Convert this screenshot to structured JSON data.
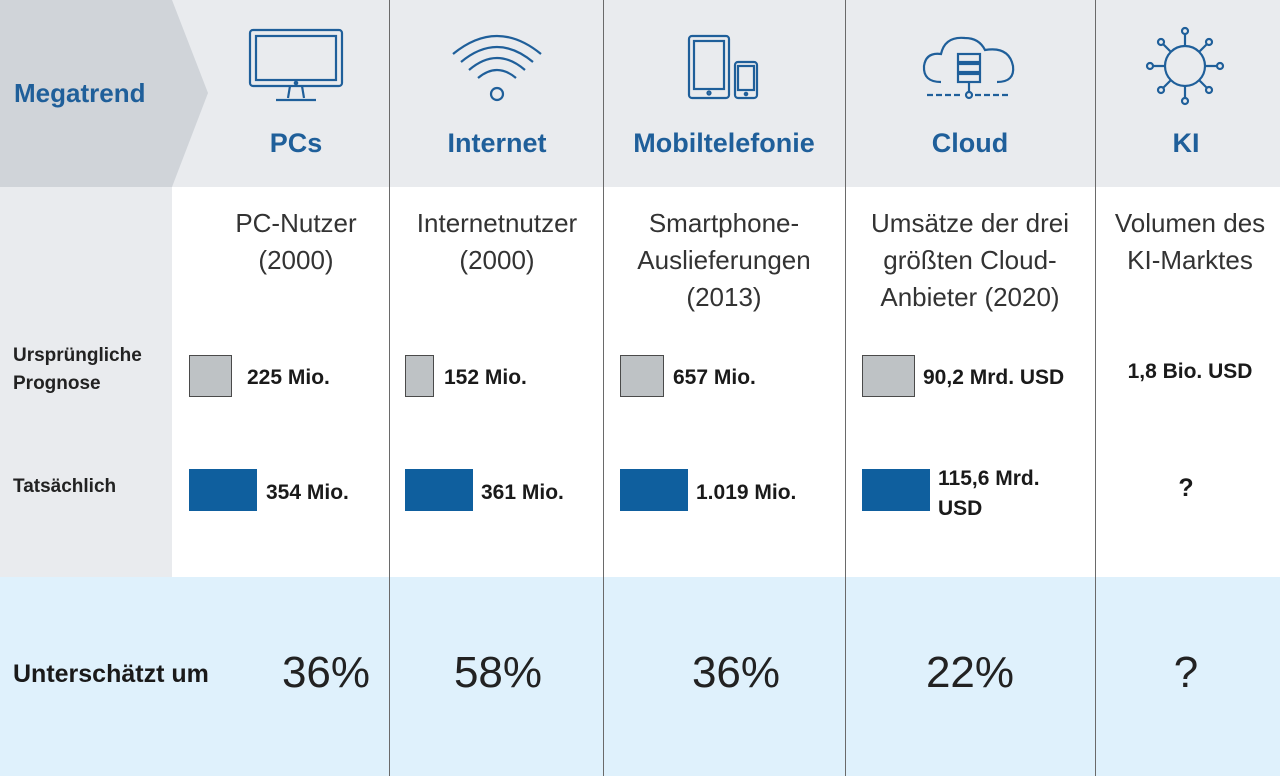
{
  "header_label": "Megatrend",
  "row_labels": {
    "original": "Ursprüngliche Prognose",
    "actual": "Tatsächlich",
    "underestimated": "Unterschätzt um"
  },
  "colors": {
    "accent": "#1f5f9a",
    "bar_actual": "#0f5f9e",
    "bar_original": "#bec2c5",
    "header_bg": "#e9ebee",
    "footer_bg": "#dff1fc"
  },
  "columns": [
    {
      "title": "PCs",
      "icon": "desktop-monitor-icon",
      "metric": "PC-Nutzer (2000)",
      "original_label": "225 Mio.",
      "actual_label": "354 Mio.",
      "underestimated": "36%"
    },
    {
      "title": "Internet",
      "icon": "wifi-icon",
      "metric": "Internetnutzer (2000)",
      "original_label": "152 Mio.",
      "actual_label": "361 Mio.",
      "underestimated": "58%"
    },
    {
      "title": "Mobiltelefonie",
      "icon": "tablet-phone-icon",
      "metric": "Smartphone-Auslieferungen (2013)",
      "original_label": "657 Mio.",
      "actual_label": "1.019 Mio.",
      "underestimated": "36%"
    },
    {
      "title": "Cloud",
      "icon": "cloud-server-icon",
      "metric": "Umsätze der drei größten Cloud-Anbieter (2020)",
      "original_label": "90,2 Mrd. USD",
      "actual_label": "115,6 Mrd. USD",
      "underestimated": "22%"
    },
    {
      "title": "KI",
      "icon": "ai-network-icon",
      "metric": "Volumen des KI-Marktes",
      "original_label": "1,8 Bio. USD",
      "actual_label": "?",
      "underestimated": "?"
    }
  ],
  "chart_data": {
    "type": "bar",
    "title": "",
    "xlabel": "",
    "ylabel": "",
    "categories": [
      "PCs",
      "Internet",
      "Mobiltelefonie",
      "Cloud",
      "KI"
    ],
    "series": [
      {
        "name": "Ursprüngliche Prognose",
        "values": [
          225,
          152,
          657,
          90.2,
          1800
        ],
        "units": [
          "Mio.",
          "Mio.",
          "Mio.",
          "Mrd. USD",
          "Mrd. USD"
        ]
      },
      {
        "name": "Tatsächlich",
        "values": [
          354,
          361,
          1019,
          115.6,
          null
        ],
        "units": [
          "Mio.",
          "Mio.",
          "Mio.",
          "Mrd. USD",
          ""
        ]
      }
    ],
    "underestimated_pct": [
      36,
      58,
      36,
      22,
      null
    ]
  }
}
